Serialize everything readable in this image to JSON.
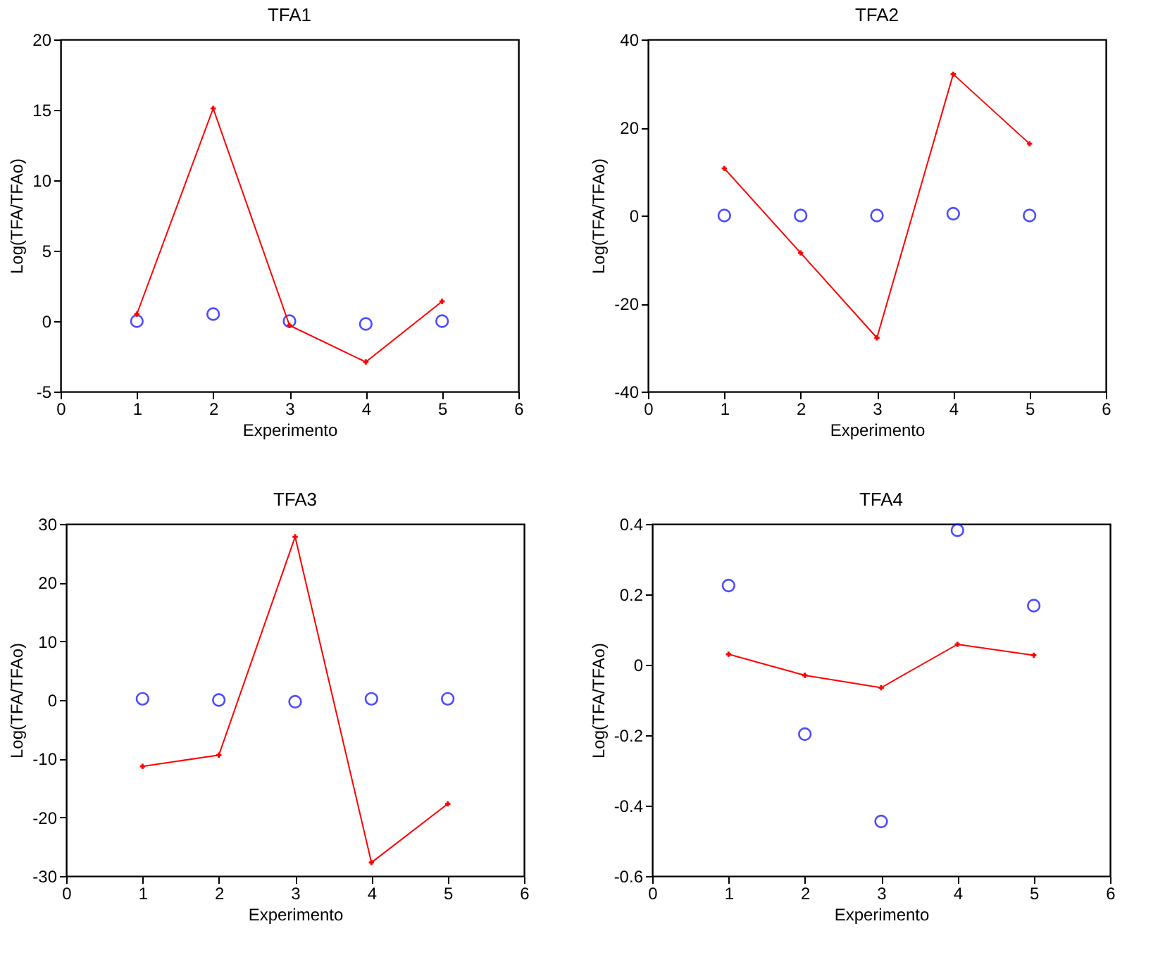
{
  "chart_data": [
    {
      "type": "line",
      "title": "TFA1",
      "xlabel": "Experimento",
      "ylabel": "Log(TFA/TFAo)",
      "x": [
        1,
        2,
        3,
        4,
        5
      ],
      "xlim": [
        0,
        6
      ],
      "xticks": [
        0,
        1,
        2,
        3,
        4,
        5,
        6
      ],
      "ylim": [
        -5,
        20
      ],
      "yticks": [
        -5,
        0,
        5,
        10,
        15,
        20
      ],
      "series": [
        {
          "type": "scatter",
          "marker": "circle",
          "color": "#0000ff",
          "values": [
            0,
            0.5,
            0,
            -0.2,
            0
          ]
        },
        {
          "type": "line",
          "marker": "cross",
          "color": "#ff0000",
          "values": [
            0.5,
            15.1,
            -0.3,
            -2.9,
            1.4
          ]
        }
      ]
    },
    {
      "type": "line",
      "title": "TFA2",
      "xlabel": "Experimento",
      "ylabel": "Log(TFA/TFAo)",
      "x": [
        1,
        2,
        3,
        4,
        5
      ],
      "xlim": [
        0,
        6
      ],
      "xticks": [
        0,
        1,
        2,
        3,
        4,
        5,
        6
      ],
      "ylim": [
        -40,
        40
      ],
      "yticks": [
        -40,
        -20,
        0,
        20,
        40
      ],
      "series": [
        {
          "type": "scatter",
          "marker": "circle",
          "color": "#0000ff",
          "values": [
            0,
            0,
            0,
            0.4,
            0
          ]
        },
        {
          "type": "line",
          "marker": "cross",
          "color": "#ff0000",
          "values": [
            10.7,
            -8.5,
            -27.8,
            32.1,
            16.3
          ]
        }
      ]
    },
    {
      "type": "line",
      "title": "TFA3",
      "xlabel": "Experimento",
      "ylabel": "Log(TFA/TFAo)",
      "x": [
        1,
        2,
        3,
        4,
        5
      ],
      "xlim": [
        0,
        6
      ],
      "xticks": [
        0,
        1,
        2,
        3,
        4,
        5,
        6
      ],
      "ylim": [
        -30,
        30
      ],
      "yticks": [
        -30,
        -20,
        -10,
        0,
        10,
        20,
        30
      ],
      "series": [
        {
          "type": "scatter",
          "marker": "circle",
          "color": "#0000ff",
          "values": [
            0.2,
            0,
            -0.3,
            0.2,
            0.2
          ]
        },
        {
          "type": "line",
          "marker": "cross",
          "color": "#ff0000",
          "values": [
            -11.3,
            -9.4,
            27.8,
            -27.7,
            -17.7
          ]
        }
      ]
    },
    {
      "type": "line",
      "title": "TFA4",
      "xlabel": "Experimento",
      "ylabel": "Log(TFA/TFAo)",
      "x": [
        1,
        2,
        3,
        4,
        5
      ],
      "xlim": [
        0,
        6
      ],
      "xticks": [
        0,
        1,
        2,
        3,
        4,
        5,
        6
      ],
      "ylim": [
        -0.6,
        0.4
      ],
      "yticks": [
        -0.6,
        -0.4,
        -0.2,
        0,
        0.2,
        0.4
      ],
      "series": [
        {
          "type": "scatter",
          "marker": "circle",
          "color": "#0000ff",
          "values": [
            0.225,
            -0.197,
            -0.445,
            0.382,
            0.168
          ]
        },
        {
          "type": "line",
          "marker": "cross",
          "color": "#ff0000",
          "values": [
            0.03,
            -0.03,
            -0.065,
            0.058,
            0.027
          ]
        }
      ]
    }
  ]
}
